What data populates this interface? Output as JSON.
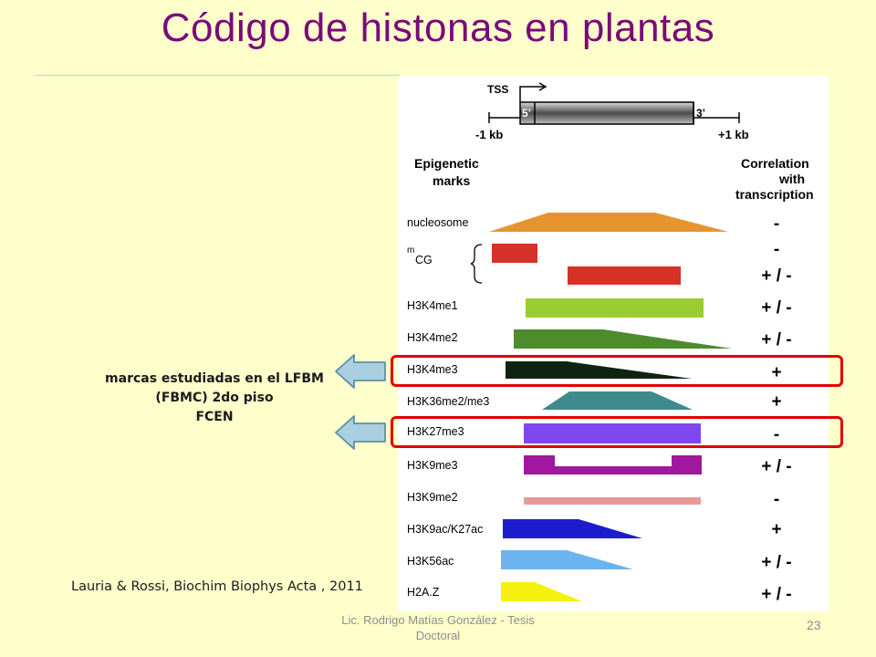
{
  "slide": {
    "title": "Código de histonas en plantas",
    "note_lines": [
      "marcas estudiadas en el LFBM",
      "(FBMC) 2do piso",
      "FCEN"
    ],
    "reference": "Lauria & Rossi, Biochim Biophys Acta , 2011",
    "footer": "Lic. Rodrigo Matías González - Tesis Doctoral",
    "page_number": "23",
    "highlight_color": "#e00000",
    "arrow_color": "#a9cfe0"
  },
  "figure": {
    "gene": {
      "tss_label": "TSS",
      "five_prime": "5’",
      "three_prime": "3’",
      "left_label": "-1 kb",
      "right_label": "+1 kb"
    },
    "header_left": [
      "Epigenetic",
      "marks"
    ],
    "header_right": [
      "Correlation",
      "with",
      "transcription"
    ],
    "marks": [
      {
        "label": "nucleosome",
        "correlation": "-",
        "color": "#e69430"
      },
      {
        "label": "mCG",
        "correlation": "-",
        "color": "#d73127",
        "second_correlation": "+ / -"
      },
      {
        "label": "H3K4me1",
        "correlation": "+ / -",
        "color": "#9acd32"
      },
      {
        "label": "H3K4me2",
        "correlation": "+ / -",
        "color": "#4c8c2c"
      },
      {
        "label": "H3K4me3",
        "correlation": "+",
        "color": "#0f2410"
      },
      {
        "label": "H3K36me2/me3",
        "correlation": "+",
        "color": "#3f8a8a"
      },
      {
        "label": "H3K27me3",
        "correlation": "-",
        "color": "#7f48ee"
      },
      {
        "label": "H3K9me3",
        "correlation": "+ / -",
        "color": "#a0189e"
      },
      {
        "label": "H3K9me2",
        "correlation": "-",
        "color": "#e89a9a"
      },
      {
        "label": "H3K9ac/K27ac",
        "correlation": "+",
        "color": "#1c1ccc"
      },
      {
        "label": "H3K56ac",
        "correlation": "+ / -",
        "color": "#6cb4f0"
      },
      {
        "label": "H2A.Z",
        "correlation": "+ / -",
        "color": "#f6f00e"
      }
    ]
  }
}
